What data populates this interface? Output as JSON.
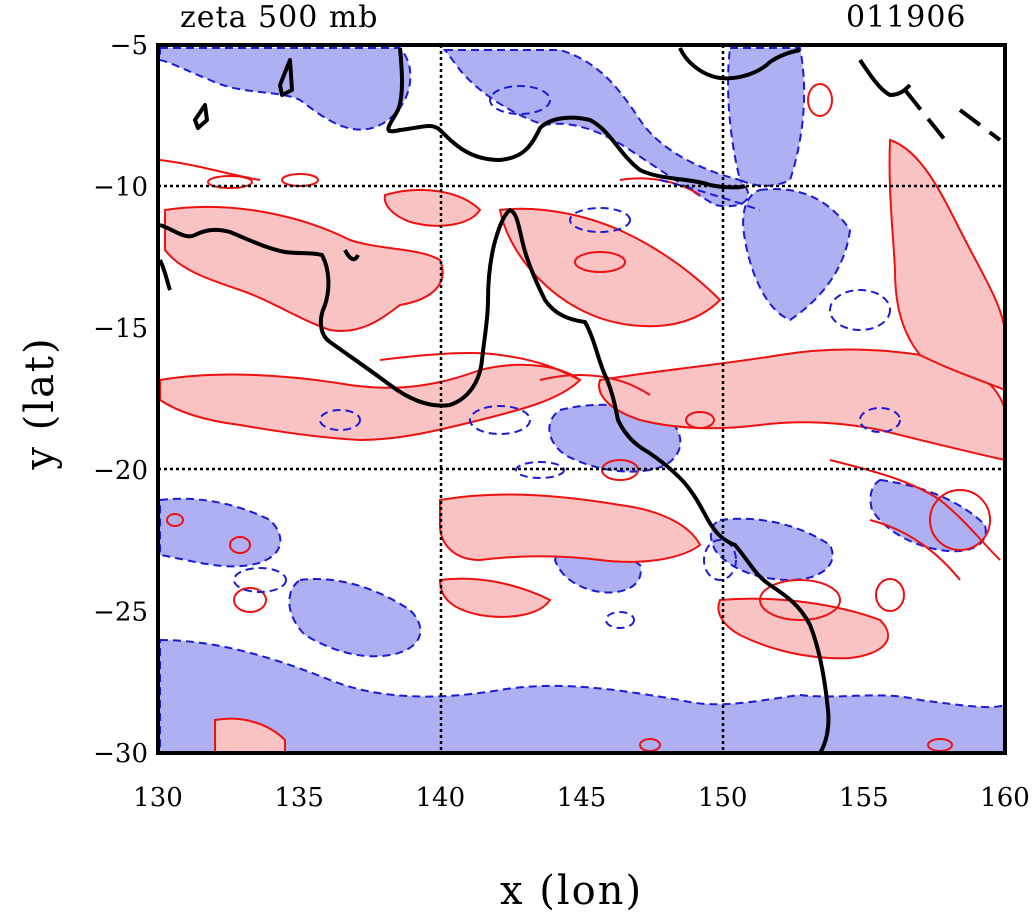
{
  "header": {
    "title_left": "zeta 500 mb",
    "title_right": "011906"
  },
  "chart_data": {
    "type": "contour",
    "title": "zeta 500 mb",
    "date": "011906",
    "xlabel": "x (lon)",
    "ylabel": "y (lat)",
    "xlim": [
      130,
      160
    ],
    "ylim": [
      -30,
      -5
    ],
    "xticks": [
      130,
      135,
      140,
      145,
      150,
      155,
      160
    ],
    "yticks": [
      -5,
      -10,
      -15,
      -20,
      -25,
      -30
    ],
    "grid_x": [
      140,
      150
    ],
    "grid_y": [
      -10,
      -20
    ],
    "grid": true,
    "colors": {
      "positive_fill": "#f9c3c3",
      "positive_line": "#ee1111",
      "negative_fill": "#aeb0f2",
      "negative_line": "#1b1bd8",
      "coast": "#000000"
    }
  }
}
